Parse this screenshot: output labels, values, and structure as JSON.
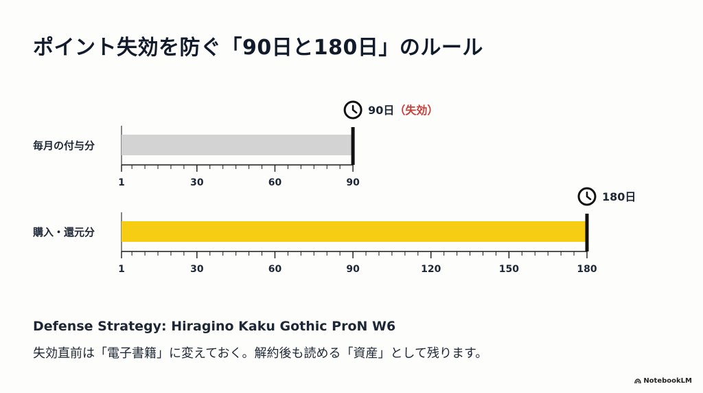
{
  "title": "ポイント失効を防ぐ「90日と180日」のルール",
  "chart_data": {
    "type": "bar",
    "rows": [
      {
        "label": "毎月の付与分",
        "value": 90,
        "axis_max": 90,
        "ticks": [
          "1",
          "30",
          "60",
          "90"
        ],
        "marker": "90日",
        "marker_note": "（失効）",
        "bar_color": "#d3d3d3"
      },
      {
        "label": "購入・還元分",
        "value": 180,
        "axis_max": 180,
        "ticks": [
          "1",
          "30",
          "60",
          "90",
          "120",
          "150",
          "180"
        ],
        "marker": "180日",
        "marker_note": "",
        "bar_color": "#f6cd12"
      }
    ]
  },
  "colors": {
    "expired": "#c8403a",
    "axis": "#1a1a1a"
  },
  "footer": {
    "heading": "Defense Strategy: Hiragino Kaku Gothic ProN W6",
    "body": "失効直前は「電子書籍」に変えておく。解約後も読める「資産」として残ります。"
  },
  "brand": "NotebookLM",
  "icons": {
    "marker": "clock-icon",
    "brand": "notebooklm-logo-icon"
  }
}
